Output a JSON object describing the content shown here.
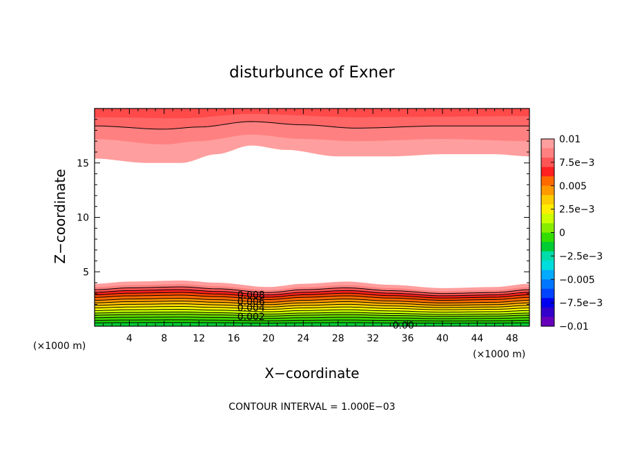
{
  "chart_data": {
    "type": "contour",
    "title": "disturbunce of Exner",
    "xlabel": "X−coordinate",
    "ylabel": "Z−coordinate",
    "x_unit": "(×1000 m)",
    "xlim": [
      0,
      50
    ],
    "ylim": [
      0,
      20
    ],
    "x_ticks": [
      4,
      8,
      12,
      16,
      20,
      24,
      28,
      32,
      36,
      40,
      44,
      48
    ],
    "y_ticks": [
      5,
      10,
      15
    ],
    "contour_interval_text": "CONTOUR INTERVAL = 1.000E−03",
    "contour_labels": [
      {
        "text": "0.008",
        "x": 18,
        "y": 2.9
      },
      {
        "text": "0.006",
        "x": 18,
        "y": 2.3
      },
      {
        "text": "0.004",
        "x": 18,
        "y": 1.7
      },
      {
        "text": "0.002",
        "x": 18,
        "y": 0.9
      },
      {
        "text": "0.00",
        "x": 35.5,
        "y": 0.1
      }
    ],
    "colorbar": {
      "min": -0.01,
      "max": 0.01,
      "tick_labels": [
        "0.01",
        "7.5e−3",
        "0.005",
        "2.5e−3",
        "0",
        "−2.5e−3",
        "−0.005",
        "−7.5e−3",
        "−0.01"
      ],
      "colors": [
        "#ff9e9e",
        "#ff8080",
        "#ff5555",
        "#ff2020",
        "#ff6a00",
        "#ff9900",
        "#ffcc00",
        "#ffee00",
        "#ccff00",
        "#88ee00",
        "#33dd00",
        "#00cc33",
        "#00ddaa",
        "#00dddd",
        "#00aaff",
        "#0077ff",
        "#0044ff",
        "#0000ee",
        "#3300cc",
        "#6600bb"
      ]
    },
    "bottom_band": {
      "top_profile": [
        [
          0,
          3.9
        ],
        [
          4,
          4.1
        ],
        [
          10,
          4.2
        ],
        [
          14,
          4.0
        ],
        [
          20,
          3.6
        ],
        [
          24,
          3.9
        ],
        [
          29,
          4.1
        ],
        [
          34,
          3.8
        ],
        [
          40,
          3.5
        ],
        [
          46,
          3.6
        ],
        [
          50,
          3.9
        ]
      ],
      "level_fractions": [
        1.0,
        0.92,
        0.86,
        0.8,
        0.74,
        0.68,
        0.61,
        0.55,
        0.49,
        0.43,
        0.37,
        0.31,
        0.26,
        0.2,
        0.14,
        0.08
      ],
      "level_colors": [
        "#ff9e9e",
        "#ff8080",
        "#ff5555",
        "#ff2020",
        "#ff4400",
        "#ff6a00",
        "#ff9900",
        "#ffbb00",
        "#ffdd00",
        "#ffff00",
        "#ccff00",
        "#99ee00",
        "#66dd00",
        "#44dd00",
        "#22cc00",
        "#00cc33"
      ]
    },
    "top_band": {
      "bottom_profile": [
        [
          0,
          15.4
        ],
        [
          6,
          15.0
        ],
        [
          10,
          15.0
        ],
        [
          14,
          15.8
        ],
        [
          18,
          16.6
        ],
        [
          22,
          16.2
        ],
        [
          28,
          15.6
        ],
        [
          34,
          15.6
        ],
        [
          40,
          15.8
        ],
        [
          46,
          15.8
        ],
        [
          50,
          15.6
        ]
      ],
      "mid_profile": [
        [
          0,
          17.2
        ],
        [
          8,
          16.7
        ],
        [
          12,
          17.0
        ],
        [
          18,
          17.6
        ],
        [
          24,
          17.2
        ],
        [
          30,
          17.0
        ],
        [
          40,
          17.2
        ],
        [
          50,
          17.0
        ]
      ],
      "line_profile": [
        [
          0,
          18.4
        ],
        [
          8,
          18.1
        ],
        [
          12,
          18.3
        ],
        [
          18,
          18.8
        ],
        [
          24,
          18.5
        ],
        [
          30,
          18.2
        ],
        [
          40,
          18.4
        ],
        [
          50,
          18.4
        ]
      ],
      "upper_profile": [
        [
          0,
          19.2
        ],
        [
          10,
          19.1
        ],
        [
          18,
          19.5
        ],
        [
          30,
          19.2
        ],
        [
          50,
          19.3
        ]
      ],
      "colors": [
        "#ff9e9e",
        "#ff8080",
        "#ff6666",
        "#ff4a4a"
      ]
    }
  }
}
